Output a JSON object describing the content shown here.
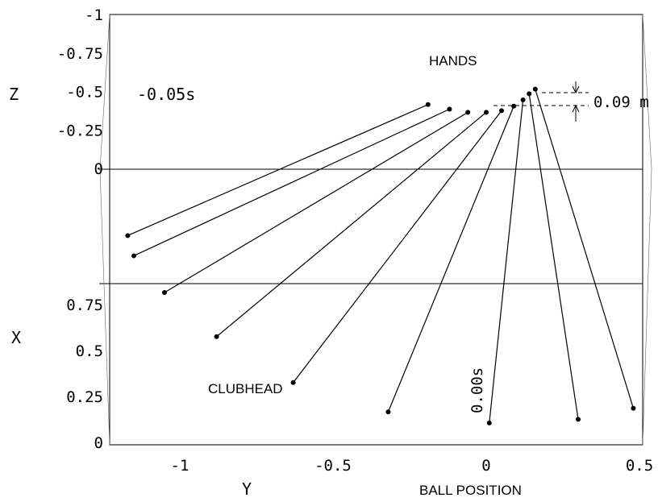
{
  "chart_data": {
    "type": "line",
    "axes": {
      "z_label": "Z",
      "x_label": "X",
      "y_label": "Y",
      "y_sublabel": "BALL POSITION",
      "z_ticks": [
        "-1",
        "-0.75",
        "-0.5",
        "-0.25",
        "0"
      ],
      "x_ticks": [
        "0.75",
        "0.5",
        "0.25",
        "0"
      ],
      "y_ticks": [
        "-1",
        "-0.5",
        "0",
        "0.5"
      ]
    },
    "annotations": {
      "hands": "HANDS",
      "clubhead": "CLUBHEAD",
      "start_time": "-0.05s",
      "end_time": "0.00s",
      "drop": "0.09 m"
    },
    "series": [
      {
        "name": "HANDS",
        "y": [
          -0.19,
          -0.12,
          -0.06,
          0.0,
          0.05,
          0.09,
          0.12,
          0.14,
          0.16
        ],
        "z": [
          -0.42,
          -0.39,
          -0.37,
          -0.37,
          -0.38,
          -0.41,
          -0.45,
          -0.49,
          -0.52
        ]
      },
      {
        "name": "CLUBHEAD",
        "y": [
          -1.17,
          -1.15,
          -1.05,
          -0.88,
          -0.63,
          -0.32,
          0.01,
          0.3,
          0.48
        ],
        "x": [
          1.13,
          1.02,
          0.82,
          0.58,
          0.33,
          0.17,
          0.11,
          0.13,
          0.19
        ]
      }
    ]
  }
}
